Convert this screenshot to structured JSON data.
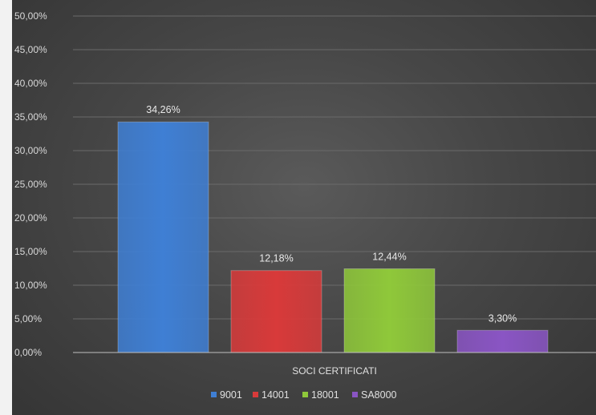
{
  "chart_data": {
    "type": "bar",
    "title": "",
    "xlabel": "SOCI CERTIFICATI",
    "ylabel": "",
    "categories": [
      "SOCI CERTIFICATI"
    ],
    "series": [
      {
        "name": "9001",
        "values": [
          34.26
        ],
        "label": "34,26%",
        "color": "#3f7fd4"
      },
      {
        "name": "14001",
        "values": [
          12.18
        ],
        "label": "12,18%",
        "color": "#d83a3a"
      },
      {
        "name": "18001",
        "values": [
          12.44
        ],
        "label": "12,44%",
        "color": "#8fc83a"
      },
      {
        "name": "SA8000",
        "values": [
          3.3
        ],
        "label": "3,30%",
        "color": "#8a55c4"
      }
    ],
    "ylim": [
      0,
      50
    ],
    "yticks": [
      0,
      5,
      10,
      15,
      20,
      25,
      30,
      35,
      40,
      45,
      50
    ],
    "ytick_labels": [
      "0,00%",
      "5,00%",
      "10,00%",
      "15,00%",
      "20,00%",
      "25,00%",
      "30,00%",
      "35,00%",
      "40,00%",
      "45,00%",
      "50,00%"
    ],
    "grid": true,
    "legend_position": "bottom"
  }
}
